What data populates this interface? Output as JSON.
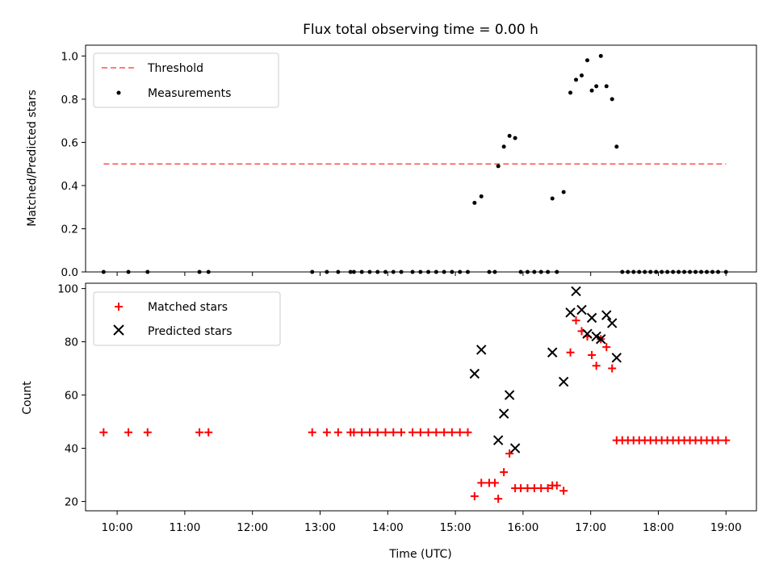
{
  "figure": {
    "title": "Flux total observing time = 0.00 h",
    "xlabel": "Time (UTC)",
    "colors": {
      "threshold": "#ff6b6b",
      "measurement": "#000000",
      "matched": "#ff0000",
      "predicted": "#000000"
    }
  },
  "chart_data": [
    {
      "type": "scatter",
      "xlabel": "",
      "ylabel": "Matched/Predicted stars",
      "xlim": [
        "09:32",
        "19:27"
      ],
      "ylim": [
        0,
        1.05
      ],
      "x_ticks": [
        "10:00",
        "11:00",
        "12:00",
        "13:00",
        "14:00",
        "15:00",
        "16:00",
        "17:00",
        "18:00",
        "19:00"
      ],
      "y_ticks": [
        "0.0",
        "0.2",
        "0.4",
        "0.6",
        "0.8",
        "1.0"
      ],
      "legend_position": "top-left",
      "grid": false,
      "series": [
        {
          "name": "Threshold",
          "kind": "dashed-line",
          "points": [
            {
              "x": "09:48",
              "y": 0.5
            },
            {
              "x": "19:00",
              "y": 0.5
            }
          ]
        },
        {
          "name": "Measurements",
          "kind": "dot",
          "points": [
            {
              "x": "09:48",
              "y": 0
            },
            {
              "x": "10:10",
              "y": 0
            },
            {
              "x": "10:27",
              "y": 0
            },
            {
              "x": "11:13",
              "y": 0
            },
            {
              "x": "11:21",
              "y": 0
            },
            {
              "x": "12:53",
              "y": 0
            },
            {
              "x": "13:06",
              "y": 0
            },
            {
              "x": "13:16",
              "y": 0
            },
            {
              "x": "13:27",
              "y": 0
            },
            {
              "x": "13:30",
              "y": 0
            },
            {
              "x": "13:37",
              "y": 0
            },
            {
              "x": "13:44",
              "y": 0
            },
            {
              "x": "13:51",
              "y": 0
            },
            {
              "x": "13:58",
              "y": 0
            },
            {
              "x": "14:05",
              "y": 0
            },
            {
              "x": "14:12",
              "y": 0
            },
            {
              "x": "14:22",
              "y": 0
            },
            {
              "x": "14:29",
              "y": 0
            },
            {
              "x": "14:36",
              "y": 0
            },
            {
              "x": "14:43",
              "y": 0
            },
            {
              "x": "14:50",
              "y": 0
            },
            {
              "x": "14:57",
              "y": 0
            },
            {
              "x": "15:04",
              "y": 0
            },
            {
              "x": "15:11",
              "y": 0
            },
            {
              "x": "15:17",
              "y": 0.32
            },
            {
              "x": "15:23",
              "y": 0.35
            },
            {
              "x": "15:30",
              "y": 0
            },
            {
              "x": "15:35",
              "y": 0
            },
            {
              "x": "15:38",
              "y": 0.49
            },
            {
              "x": "15:43",
              "y": 0.58
            },
            {
              "x": "15:48",
              "y": 0.63
            },
            {
              "x": "15:53",
              "y": 0.62
            },
            {
              "x": "15:58",
              "y": 0
            },
            {
              "x": "16:04",
              "y": 0
            },
            {
              "x": "16:10",
              "y": 0
            },
            {
              "x": "16:16",
              "y": 0
            },
            {
              "x": "16:22",
              "y": 0
            },
            {
              "x": "16:26",
              "y": 0.34
            },
            {
              "x": "16:30",
              "y": 0
            },
            {
              "x": "16:36",
              "y": 0.37
            },
            {
              "x": "16:42",
              "y": 0.83
            },
            {
              "x": "16:47",
              "y": 0.89
            },
            {
              "x": "16:52",
              "y": 0.91
            },
            {
              "x": "16:57",
              "y": 0.98
            },
            {
              "x": "17:01",
              "y": 0.84
            },
            {
              "x": "17:05",
              "y": 0.86
            },
            {
              "x": "17:09",
              "y": 1.0
            },
            {
              "x": "17:14",
              "y": 0.86
            },
            {
              "x": "17:19",
              "y": 0.8
            },
            {
              "x": "17:23",
              "y": 0.58
            },
            {
              "x": "17:28",
              "y": 0
            },
            {
              "x": "17:33",
              "y": 0
            },
            {
              "x": "17:38",
              "y": 0
            },
            {
              "x": "17:43",
              "y": 0
            },
            {
              "x": "17:48",
              "y": 0
            },
            {
              "x": "17:53",
              "y": 0
            },
            {
              "x": "17:58",
              "y": 0
            },
            {
              "x": "18:03",
              "y": 0
            },
            {
              "x": "18:08",
              "y": 0
            },
            {
              "x": "18:13",
              "y": 0
            },
            {
              "x": "18:18",
              "y": 0
            },
            {
              "x": "18:23",
              "y": 0
            },
            {
              "x": "18:28",
              "y": 0
            },
            {
              "x": "18:33",
              "y": 0
            },
            {
              "x": "18:38",
              "y": 0
            },
            {
              "x": "18:43",
              "y": 0
            },
            {
              "x": "18:48",
              "y": 0
            },
            {
              "x": "18:53",
              "y": 0
            },
            {
              "x": "19:00",
              "y": 0
            }
          ]
        }
      ]
    },
    {
      "type": "scatter",
      "xlabel": "Time (UTC)",
      "ylabel": "Count",
      "xlim": [
        "09:32",
        "19:27"
      ],
      "ylim": [
        16.5,
        102
      ],
      "x_ticks": [
        "10:00",
        "11:00",
        "12:00",
        "13:00",
        "14:00",
        "15:00",
        "16:00",
        "17:00",
        "18:00",
        "19:00"
      ],
      "y_ticks": [
        "20",
        "40",
        "60",
        "80",
        "100"
      ],
      "legend_position": "top-left",
      "grid": false,
      "series": [
        {
          "name": "Matched stars",
          "kind": "plus",
          "points": [
            {
              "x": "09:48",
              "y": 46
            },
            {
              "x": "10:10",
              "y": 46
            },
            {
              "x": "10:27",
              "y": 46
            },
            {
              "x": "11:13",
              "y": 46
            },
            {
              "x": "11:21",
              "y": 46
            },
            {
              "x": "12:53",
              "y": 46
            },
            {
              "x": "13:06",
              "y": 46
            },
            {
              "x": "13:16",
              "y": 46
            },
            {
              "x": "13:27",
              "y": 46
            },
            {
              "x": "13:30",
              "y": 46
            },
            {
              "x": "13:37",
              "y": 46
            },
            {
              "x": "13:44",
              "y": 46
            },
            {
              "x": "13:51",
              "y": 46
            },
            {
              "x": "13:58",
              "y": 46
            },
            {
              "x": "14:05",
              "y": 46
            },
            {
              "x": "14:12",
              "y": 46
            },
            {
              "x": "14:22",
              "y": 46
            },
            {
              "x": "14:29",
              "y": 46
            },
            {
              "x": "14:36",
              "y": 46
            },
            {
              "x": "14:43",
              "y": 46
            },
            {
              "x": "14:50",
              "y": 46
            },
            {
              "x": "14:57",
              "y": 46
            },
            {
              "x": "15:04",
              "y": 46
            },
            {
              "x": "15:11",
              "y": 46
            },
            {
              "x": "15:17",
              "y": 22
            },
            {
              "x": "15:23",
              "y": 27
            },
            {
              "x": "15:30",
              "y": 27
            },
            {
              "x": "15:35",
              "y": 27
            },
            {
              "x": "15:38",
              "y": 21
            },
            {
              "x": "15:43",
              "y": 31
            },
            {
              "x": "15:48",
              "y": 38
            },
            {
              "x": "15:53",
              "y": 25
            },
            {
              "x": "15:58",
              "y": 25
            },
            {
              "x": "16:04",
              "y": 25
            },
            {
              "x": "16:10",
              "y": 25
            },
            {
              "x": "16:16",
              "y": 25
            },
            {
              "x": "16:22",
              "y": 25
            },
            {
              "x": "16:26",
              "y": 26
            },
            {
              "x": "16:30",
              "y": 26
            },
            {
              "x": "16:36",
              "y": 24
            },
            {
              "x": "16:42",
              "y": 76
            },
            {
              "x": "16:47",
              "y": 88
            },
            {
              "x": "16:52",
              "y": 84
            },
            {
              "x": "16:57",
              "y": 82
            },
            {
              "x": "17:01",
              "y": 75
            },
            {
              "x": "17:05",
              "y": 71
            },
            {
              "x": "17:09",
              "y": 81
            },
            {
              "x": "17:14",
              "y": 78
            },
            {
              "x": "17:19",
              "y": 70
            },
            {
              "x": "17:23",
              "y": 43
            },
            {
              "x": "17:28",
              "y": 43
            },
            {
              "x": "17:33",
              "y": 43
            },
            {
              "x": "17:38",
              "y": 43
            },
            {
              "x": "17:43",
              "y": 43
            },
            {
              "x": "17:48",
              "y": 43
            },
            {
              "x": "17:53",
              "y": 43
            },
            {
              "x": "17:58",
              "y": 43
            },
            {
              "x": "18:03",
              "y": 43
            },
            {
              "x": "18:08",
              "y": 43
            },
            {
              "x": "18:13",
              "y": 43
            },
            {
              "x": "18:18",
              "y": 43
            },
            {
              "x": "18:23",
              "y": 43
            },
            {
              "x": "18:28",
              "y": 43
            },
            {
              "x": "18:33",
              "y": 43
            },
            {
              "x": "18:38",
              "y": 43
            },
            {
              "x": "18:43",
              "y": 43
            },
            {
              "x": "18:48",
              "y": 43
            },
            {
              "x": "18:53",
              "y": 43
            },
            {
              "x": "19:00",
              "y": 43
            }
          ]
        },
        {
          "name": "Predicted stars",
          "kind": "cross",
          "points": [
            {
              "x": "15:17",
              "y": 68
            },
            {
              "x": "15:23",
              "y": 77
            },
            {
              "x": "15:38",
              "y": 43
            },
            {
              "x": "15:43",
              "y": 53
            },
            {
              "x": "15:48",
              "y": 60
            },
            {
              "x": "15:53",
              "y": 40
            },
            {
              "x": "16:26",
              "y": 76
            },
            {
              "x": "16:36",
              "y": 65
            },
            {
              "x": "16:42",
              "y": 91
            },
            {
              "x": "16:47",
              "y": 99
            },
            {
              "x": "16:52",
              "y": 92
            },
            {
              "x": "16:57",
              "y": 83
            },
            {
              "x": "17:01",
              "y": 89
            },
            {
              "x": "17:05",
              "y": 82
            },
            {
              "x": "17:09",
              "y": 81
            },
            {
              "x": "17:14",
              "y": 90
            },
            {
              "x": "17:19",
              "y": 87
            },
            {
              "x": "17:23",
              "y": 74
            }
          ]
        }
      ]
    }
  ]
}
